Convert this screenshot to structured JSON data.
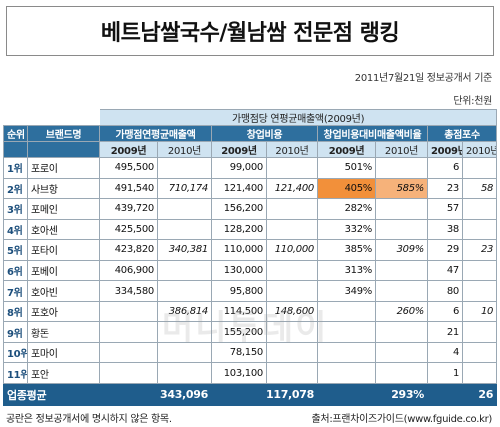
{
  "title": "베트남쌀국수/월남쌈 전문점 랭킹",
  "meta": {
    "date_basis": "2011년7월21일 정보공개서 기준",
    "unit": "단위:천원"
  },
  "watermark": "머니투데이",
  "table": {
    "super_header": "가맹점당 연평균매출액(2009년)",
    "headers": {
      "rank": "순위",
      "brand": "브랜드명",
      "sales": "가맹점연평균매출액",
      "startup": "창업비용",
      "ratio": "창업비용대비매출액비율",
      "score": "총점포수"
    },
    "years": [
      "2009년",
      "2010년",
      "2009년",
      "2010년",
      "2009년",
      "2010년",
      "2009년",
      "2010년"
    ],
    "rows": [
      {
        "rank": "1위",
        "brand": "포로이",
        "sales09": "495,500",
        "sales10": "",
        "start09": "99,000",
        "start10": "",
        "ratio09": "501%",
        "ratio10": "",
        "stores09": "6",
        "stores10": ""
      },
      {
        "rank": "2위",
        "brand": "사브항",
        "sales09": "491,540",
        "sales10": "710,174",
        "start09": "121,400",
        "start10": "121,400",
        "ratio09": "405%",
        "ratio10": "585%",
        "stores09": "23",
        "stores10": "58"
      },
      {
        "rank": "3위",
        "brand": "포메인",
        "sales09": "439,720",
        "sales10": "",
        "start09": "156,200",
        "start10": "",
        "ratio09": "282%",
        "ratio10": "",
        "stores09": "57",
        "stores10": ""
      },
      {
        "rank": "4위",
        "brand": "호아센",
        "sales09": "425,500",
        "sales10": "",
        "start09": "128,200",
        "start10": "",
        "ratio09": "332%",
        "ratio10": "",
        "stores09": "38",
        "stores10": ""
      },
      {
        "rank": "5위",
        "brand": "포타이",
        "sales09": "423,820",
        "sales10": "340,381",
        "start09": "110,000",
        "start10": "110,000",
        "ratio09": "385%",
        "ratio10": "309%",
        "stores09": "29",
        "stores10": "23"
      },
      {
        "rank": "6위",
        "brand": "포베이",
        "sales09": "406,900",
        "sales10": "",
        "start09": "130,000",
        "start10": "",
        "ratio09": "313%",
        "ratio10": "",
        "stores09": "47",
        "stores10": ""
      },
      {
        "rank": "7위",
        "brand": "호아빈",
        "sales09": "334,580",
        "sales10": "",
        "start09": "95,800",
        "start10": "",
        "ratio09": "349%",
        "ratio10": "",
        "stores09": "80",
        "stores10": ""
      },
      {
        "rank": "8위",
        "brand": "포호아",
        "sales09": "",
        "sales10": "386,814",
        "start09": "114,500",
        "start10": "148,600",
        "ratio09": "",
        "ratio10": "260%",
        "stores09": "6",
        "stores10": "10"
      },
      {
        "rank": "9위",
        "brand": "황돈",
        "sales09": "",
        "sales10": "",
        "start09": "155,200",
        "start10": "",
        "ratio09": "",
        "ratio10": "",
        "stores09": "21",
        "stores10": ""
      },
      {
        "rank": "10위",
        "brand": "포마이",
        "sales09": "",
        "sales10": "",
        "start09": "78,150",
        "start10": "",
        "ratio09": "",
        "ratio10": "",
        "stores09": "4",
        "stores10": ""
      },
      {
        "rank": "11위",
        "brand": "포안",
        "sales09": "",
        "sales10": "",
        "start09": "103,100",
        "start10": "",
        "ratio09": "",
        "ratio10": "",
        "stores09": "1",
        "stores10": ""
      }
    ],
    "average": {
      "label": "업종평균",
      "sales09": "343,096",
      "start09": "117,078",
      "ratio09": "293%",
      "stores09": "26"
    },
    "highlight_colors": {
      "dark": "#f2903a",
      "light": "#f6b27a"
    }
  },
  "footer": {
    "note": "공란은 정보공개서에 명시하지 않은 항목.",
    "source": "출처:프랜차이즈가이드(www.fguide.co.kr)"
  }
}
